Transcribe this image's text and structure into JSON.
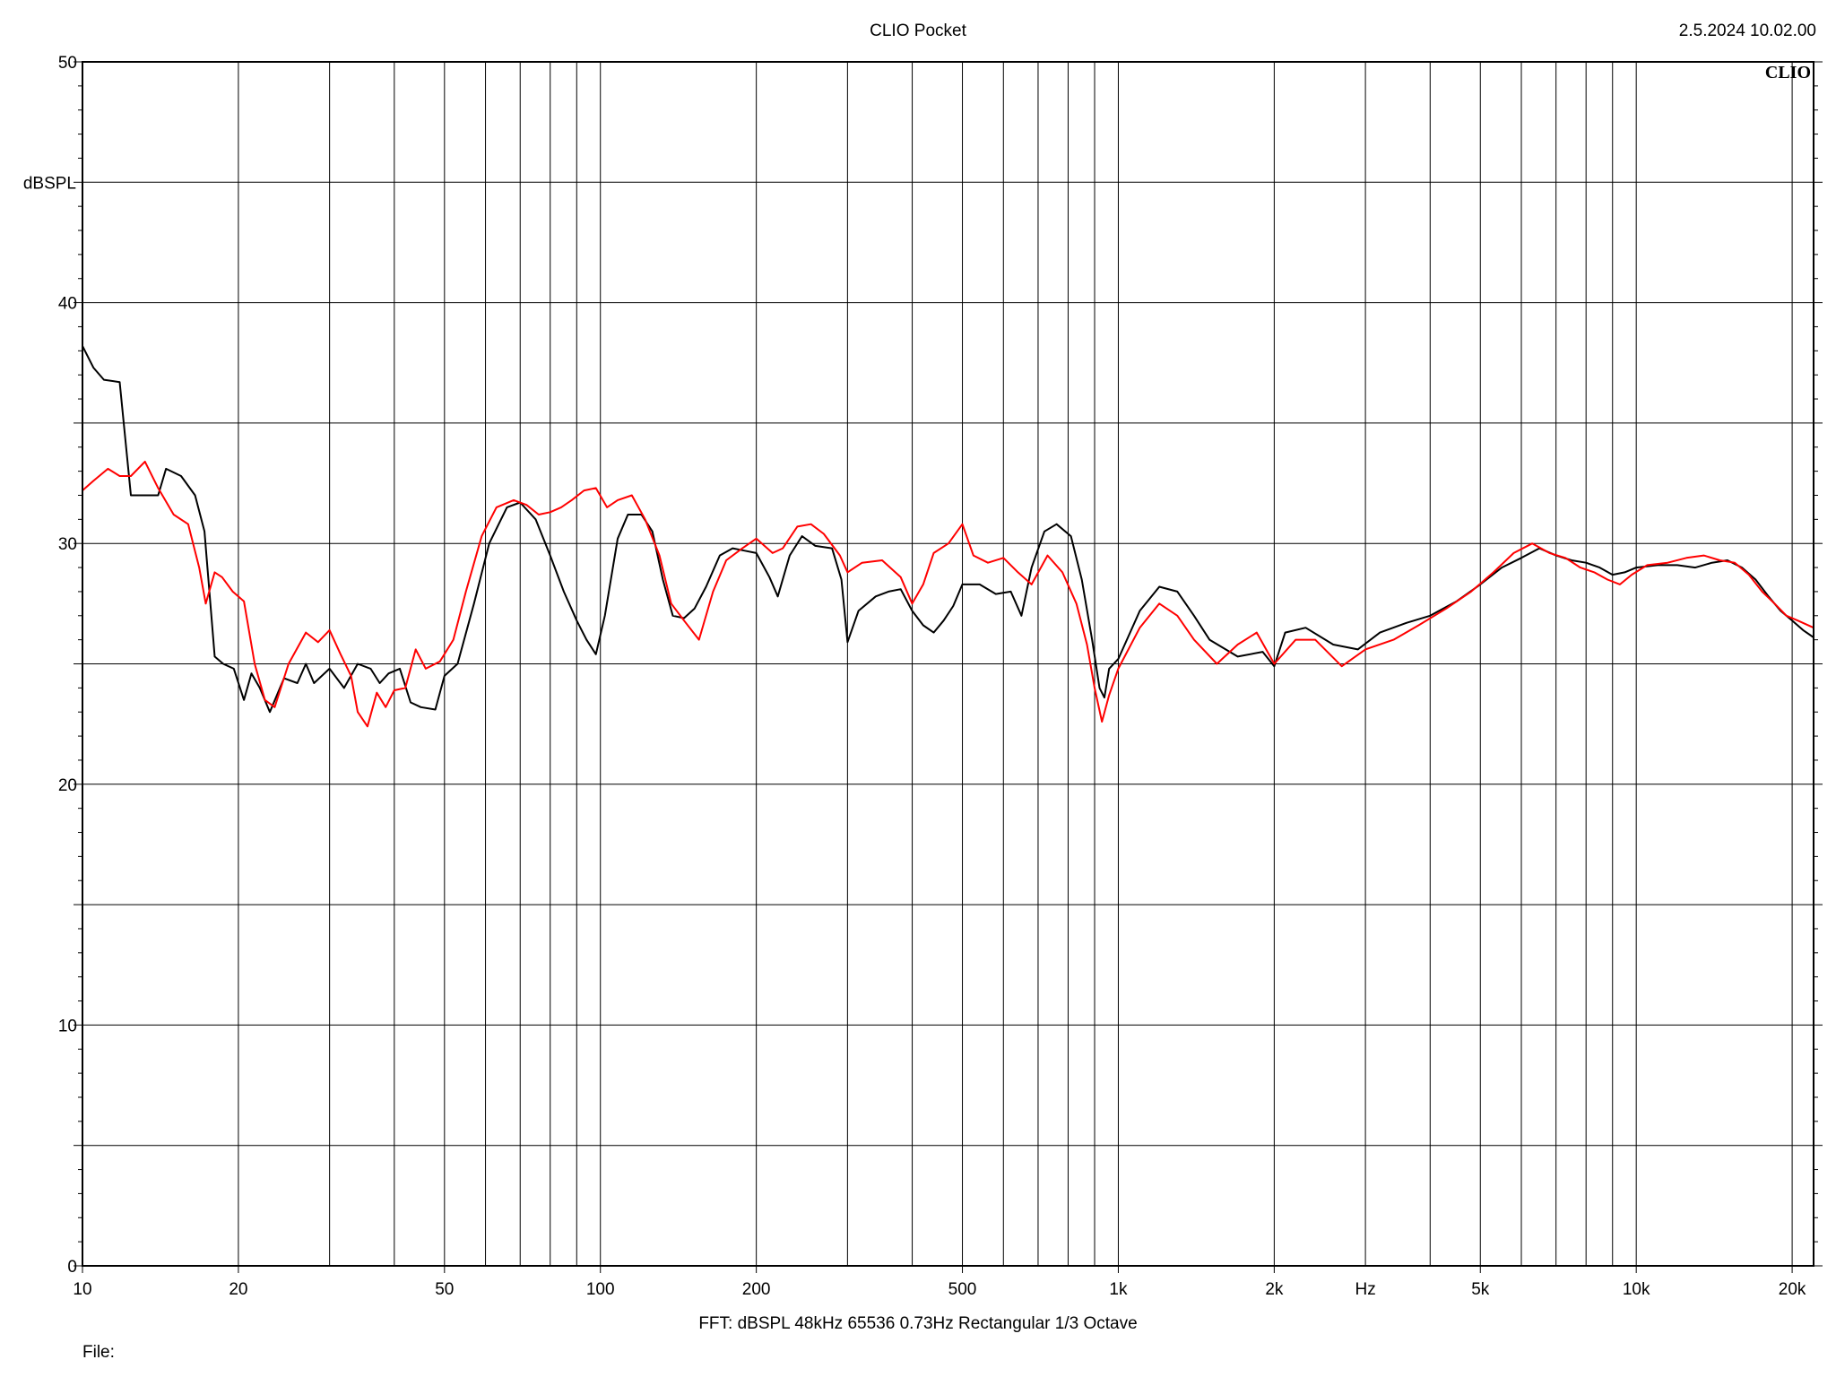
{
  "header": {
    "title": "CLIO Pocket",
    "timestamp": "2.5.2024 10.02.00",
    "brand": "CLIO"
  },
  "footer": {
    "settings": "FFT:  dBSPL  48kHz   65536  0.73Hz  Rectangular  1/3 Octave",
    "file_label": "File:"
  },
  "chart_data": {
    "type": "line",
    "title": "",
    "xlabel": "Hz",
    "ylabel": "dBSPL",
    "xscale": "log",
    "xlim": [
      10,
      22000
    ],
    "ylim": [
      0,
      50
    ],
    "grid": true,
    "x_ticks": [
      {
        "value": 10,
        "label": "10"
      },
      {
        "value": 20,
        "label": "20"
      },
      {
        "value": 50,
        "label": "50"
      },
      {
        "value": 100,
        "label": "100"
      },
      {
        "value": 200,
        "label": "200"
      },
      {
        "value": 500,
        "label": "500"
      },
      {
        "value": 1000,
        "label": "1k"
      },
      {
        "value": 2000,
        "label": "2k"
      },
      {
        "value": 5000,
        "label": "5k"
      },
      {
        "value": 10000,
        "label": "10k"
      },
      {
        "value": 20000,
        "label": "20k"
      }
    ],
    "y_ticks": [
      0,
      10,
      20,
      30,
      40,
      50
    ],
    "colors": {
      "series_1": "#000000",
      "series_2": "#ff0000",
      "grid": "#000000"
    },
    "series": [
      {
        "color": "#000000",
        "points": [
          [
            10,
            38.2
          ],
          [
            10.5,
            37.3
          ],
          [
            11,
            36.8
          ],
          [
            11.8,
            36.7
          ],
          [
            12.4,
            32.0
          ],
          [
            13.0,
            32.0
          ],
          [
            14.0,
            32.0
          ],
          [
            14.5,
            33.1
          ],
          [
            15.5,
            32.8
          ],
          [
            16.5,
            32.0
          ],
          [
            17.2,
            30.5
          ],
          [
            18.0,
            25.3
          ],
          [
            18.7,
            25.0
          ],
          [
            19.6,
            24.8
          ],
          [
            20.5,
            23.5
          ],
          [
            21.2,
            24.6
          ],
          [
            22.0,
            24.0
          ],
          [
            23.0,
            23.0
          ],
          [
            24.5,
            24.4
          ],
          [
            26.0,
            24.2
          ],
          [
            27.0,
            25.0
          ],
          [
            28.0,
            24.2
          ],
          [
            30.0,
            24.8
          ],
          [
            32.0,
            24.0
          ],
          [
            34.0,
            25.0
          ],
          [
            36.0,
            24.8
          ],
          [
            37.5,
            24.2
          ],
          [
            39.0,
            24.6
          ],
          [
            41.0,
            24.8
          ],
          [
            43.0,
            23.4
          ],
          [
            45.0,
            23.2
          ],
          [
            48.0,
            23.1
          ],
          [
            50.0,
            24.5
          ],
          [
            53.0,
            25.0
          ],
          [
            57.0,
            27.5
          ],
          [
            61.0,
            30.0
          ],
          [
            66.0,
            31.5
          ],
          [
            70.0,
            31.7
          ],
          [
            75.0,
            31.0
          ],
          [
            80.0,
            29.5
          ],
          [
            85.0,
            28.0
          ],
          [
            90.0,
            26.8
          ],
          [
            94.0,
            26.0
          ],
          [
            98.0,
            25.4
          ],
          [
            102.0,
            27.0
          ],
          [
            108.0,
            30.2
          ],
          [
            113.0,
            31.2
          ],
          [
            120.0,
            31.2
          ],
          [
            126.0,
            30.5
          ],
          [
            132.0,
            28.5
          ],
          [
            138.0,
            27.0
          ],
          [
            145.0,
            26.9
          ],
          [
            152.0,
            27.3
          ],
          [
            160.0,
            28.2
          ],
          [
            170.0,
            29.5
          ],
          [
            180.0,
            29.8
          ],
          [
            190.0,
            29.7
          ],
          [
            200.0,
            29.6
          ],
          [
            212.0,
            28.6
          ],
          [
            220.0,
            27.8
          ],
          [
            232.0,
            29.5
          ],
          [
            245.0,
            30.3
          ],
          [
            260.0,
            29.9
          ],
          [
            280.0,
            29.8
          ],
          [
            292.0,
            28.5
          ],
          [
            300.0,
            25.9
          ],
          [
            315.0,
            27.2
          ],
          [
            340.0,
            27.8
          ],
          [
            360.0,
            28.0
          ],
          [
            380.0,
            28.1
          ],
          [
            400.0,
            27.2
          ],
          [
            420.0,
            26.6
          ],
          [
            440.0,
            26.3
          ],
          [
            460.0,
            26.8
          ],
          [
            480.0,
            27.4
          ],
          [
            500.0,
            28.3
          ],
          [
            540.0,
            28.3
          ],
          [
            580.0,
            27.9
          ],
          [
            620.0,
            28.0
          ],
          [
            650.0,
            27.0
          ],
          [
            680.0,
            29.0
          ],
          [
            720.0,
            30.5
          ],
          [
            760.0,
            30.8
          ],
          [
            810.0,
            30.3
          ],
          [
            850.0,
            28.5
          ],
          [
            890.0,
            26.0
          ],
          [
            920.0,
            24.0
          ],
          [
            940.0,
            23.6
          ],
          [
            960.0,
            24.8
          ],
          [
            1000.0,
            25.2
          ],
          [
            1100.0,
            27.2
          ],
          [
            1200.0,
            28.2
          ],
          [
            1300.0,
            28.0
          ],
          [
            1400.0,
            27.0
          ],
          [
            1500.0,
            26.0
          ],
          [
            1700.0,
            25.3
          ],
          [
            1900.0,
            25.5
          ],
          [
            2000.0,
            24.9
          ],
          [
            2100.0,
            26.3
          ],
          [
            2300.0,
            26.5
          ],
          [
            2600.0,
            25.8
          ],
          [
            2900.0,
            25.6
          ],
          [
            3200.0,
            26.3
          ],
          [
            3600.0,
            26.7
          ],
          [
            4000.0,
            27.0
          ],
          [
            4500.0,
            27.6
          ],
          [
            5000.0,
            28.3
          ],
          [
            5500.0,
            29.0
          ],
          [
            6000.0,
            29.4
          ],
          [
            6500.0,
            29.8
          ],
          [
            7000.0,
            29.5
          ],
          [
            7500.0,
            29.3
          ],
          [
            8000.0,
            29.2
          ],
          [
            8500.0,
            29.0
          ],
          [
            9000.0,
            28.7
          ],
          [
            9500.0,
            28.8
          ],
          [
            10000.0,
            29.0
          ],
          [
            11000.0,
            29.1
          ],
          [
            12000.0,
            29.1
          ],
          [
            13000.0,
            29.0
          ],
          [
            14000.0,
            29.2
          ],
          [
            15000.0,
            29.3
          ],
          [
            16000,
            29.0
          ],
          [
            17000,
            28.5
          ],
          [
            18000,
            27.8
          ],
          [
            19000,
            27.2
          ],
          [
            20000,
            26.8
          ],
          [
            21000,
            26.4
          ],
          [
            22000,
            26.1
          ]
        ]
      },
      {
        "color": "#ff0000",
        "points": [
          [
            10,
            32.2
          ],
          [
            10.5,
            32.6
          ],
          [
            11.2,
            33.1
          ],
          [
            11.8,
            32.8
          ],
          [
            12.4,
            32.8
          ],
          [
            13.2,
            33.4
          ],
          [
            14.0,
            32.3
          ],
          [
            15.0,
            31.2
          ],
          [
            16.0,
            30.8
          ],
          [
            16.8,
            29.0
          ],
          [
            17.3,
            27.5
          ],
          [
            18.0,
            28.8
          ],
          [
            18.6,
            28.6
          ],
          [
            19.5,
            28.0
          ],
          [
            20.5,
            27.6
          ],
          [
            21.5,
            25.0
          ],
          [
            22.5,
            23.5
          ],
          [
            23.5,
            23.2
          ],
          [
            25.0,
            25.0
          ],
          [
            27.0,
            26.3
          ],
          [
            28.5,
            25.9
          ],
          [
            30.0,
            26.4
          ],
          [
            31.5,
            25.4
          ],
          [
            33.0,
            24.5
          ],
          [
            34.0,
            23.0
          ],
          [
            35.5,
            22.4
          ],
          [
            37.0,
            23.8
          ],
          [
            38.5,
            23.2
          ],
          [
            40.0,
            23.9
          ],
          [
            42.0,
            24.0
          ],
          [
            44.0,
            25.6
          ],
          [
            46.0,
            24.8
          ],
          [
            49.0,
            25.1
          ],
          [
            52.0,
            26.0
          ],
          [
            55.0,
            28.0
          ],
          [
            59.0,
            30.3
          ],
          [
            63.0,
            31.5
          ],
          [
            68.0,
            31.8
          ],
          [
            72.0,
            31.6
          ],
          [
            76.0,
            31.2
          ],
          [
            80.0,
            31.3
          ],
          [
            84.0,
            31.5
          ],
          [
            88.0,
            31.8
          ],
          [
            93.0,
            32.2
          ],
          [
            98.0,
            32.3
          ],
          [
            103.0,
            31.5
          ],
          [
            108.0,
            31.8
          ],
          [
            115.0,
            32.0
          ],
          [
            122.0,
            31.0
          ],
          [
            130.0,
            29.5
          ],
          [
            137.0,
            27.5
          ],
          [
            145.0,
            26.8
          ],
          [
            155.0,
            26.0
          ],
          [
            165.0,
            28.0
          ],
          [
            175.0,
            29.3
          ],
          [
            188.0,
            29.8
          ],
          [
            200.0,
            30.2
          ],
          [
            215.0,
            29.6
          ],
          [
            225.0,
            29.8
          ],
          [
            240.0,
            30.7
          ],
          [
            255.0,
            30.8
          ],
          [
            270.0,
            30.4
          ],
          [
            290.0,
            29.5
          ],
          [
            300.0,
            28.8
          ],
          [
            320.0,
            29.2
          ],
          [
            350.0,
            29.3
          ],
          [
            380.0,
            28.6
          ],
          [
            400.0,
            27.5
          ],
          [
            420.0,
            28.3
          ],
          [
            440.0,
            29.6
          ],
          [
            470.0,
            30.0
          ],
          [
            500.0,
            30.8
          ],
          [
            525.0,
            29.5
          ],
          [
            560.0,
            29.2
          ],
          [
            600.0,
            29.4
          ],
          [
            640.0,
            28.8
          ],
          [
            680.0,
            28.3
          ],
          [
            730.0,
            29.5
          ],
          [
            780.0,
            28.8
          ],
          [
            830.0,
            27.5
          ],
          [
            870.0,
            25.8
          ],
          [
            900.0,
            24.0
          ],
          [
            930.0,
            22.6
          ],
          [
            960.0,
            23.7
          ],
          [
            1000.0,
            24.8
          ],
          [
            1100.0,
            26.5
          ],
          [
            1200.0,
            27.5
          ],
          [
            1300.0,
            27.0
          ],
          [
            1400.0,
            26.0
          ],
          [
            1550.0,
            25.0
          ],
          [
            1700.0,
            25.8
          ],
          [
            1850.0,
            26.3
          ],
          [
            2000.0,
            25.0
          ],
          [
            2200.0,
            26.0
          ],
          [
            2400.0,
            26.0
          ],
          [
            2700.0,
            24.9
          ],
          [
            3000.0,
            25.6
          ],
          [
            3400.0,
            26.0
          ],
          [
            3800.0,
            26.6
          ],
          [
            4300.0,
            27.3
          ],
          [
            4800.0,
            28.0
          ],
          [
            5300.0,
            28.8
          ],
          [
            5800.0,
            29.6
          ],
          [
            6300.0,
            30.0
          ],
          [
            6800.0,
            29.6
          ],
          [
            7300.0,
            29.4
          ],
          [
            7800.0,
            29.0
          ],
          [
            8300.0,
            28.8
          ],
          [
            8800.0,
            28.5
          ],
          [
            9300.0,
            28.3
          ],
          [
            9800.0,
            28.7
          ],
          [
            10500.0,
            29.1
          ],
          [
            11500.0,
            29.2
          ],
          [
            12500.0,
            29.4
          ],
          [
            13500.0,
            29.5
          ],
          [
            14500.0,
            29.3
          ],
          [
            15500.0,
            29.2
          ],
          [
            16500,
            28.7
          ],
          [
            17500,
            28.0
          ],
          [
            18500,
            27.5
          ],
          [
            19500,
            27.0
          ],
          [
            20500,
            26.8
          ],
          [
            22000,
            26.5
          ]
        ]
      }
    ]
  }
}
